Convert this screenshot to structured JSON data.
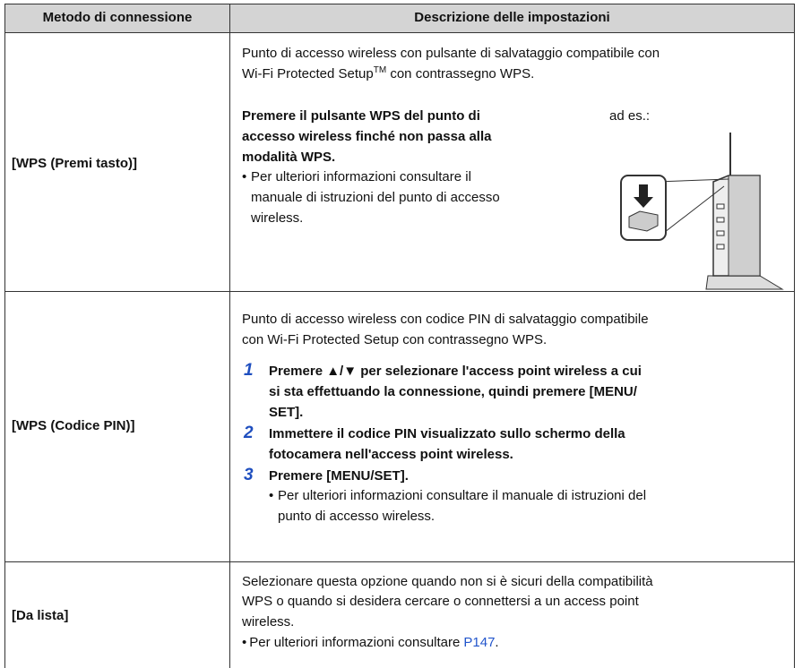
{
  "header": {
    "col1": "Metodo di connessione",
    "col2": "Descrizione delle impostazioni"
  },
  "rows": [
    {
      "method": "[WPS (Premi tasto)]",
      "intro": {
        "line1": "Punto di accesso wireless con pulsante di salvataggio compatibile con",
        "line2_start": "Wi-Fi Protected Setup",
        "sup": "TM",
        "line2_end": "con contrassegno WPS."
      },
      "bold": [
        "Premere il pulsante WPS del punto di",
        "accesso wireless finché non passa alla",
        "modalità WPS."
      ],
      "note": {
        "bullet": "•",
        "lines": [
          "Per ulteriori informazioni consultare il",
          "manuale di istruzioni del punto di accesso",
          "wireless."
        ]
      },
      "caption": "ad es.:"
    },
    {
      "method": "[WPS (Codice PIN)]",
      "intro": [
        "Punto di accesso wireless con codice PIN di salvataggio compatibile",
        "con Wi-Fi Protected Setup con contrassegno WPS."
      ],
      "steps": [
        {
          "number": "1",
          "lines": [
            "Premere ▲/▼ per selezionare l'access point wireless a cui",
            "si sta effettuando la connessione, quindi premere [MENU/",
            "SET]."
          ]
        },
        {
          "number": "2",
          "lines": [
            "Immettere il codice PIN visualizzato sullo schermo della",
            "fotocamera nell'access point wireless."
          ]
        },
        {
          "number": "3",
          "lines": [
            "Premere [MENU/SET]."
          ]
        }
      ],
      "note": {
        "bullet": "•",
        "lines": [
          "Per ulteriori informazioni consultare il manuale di istruzioni del",
          "punto di accesso wireless."
        ]
      }
    },
    {
      "method": "[Da lista]",
      "intro": [
        "Selezionare questa opzione quando non si è sicuri della compatibilità",
        "WPS o quando si desidera cercare o connettersi a un access point",
        "wireless."
      ],
      "note": {
        "bullet": "•",
        "text": "Per ulteriori informazioni consultare",
        "link": "P147",
        "end": "."
      }
    }
  ]
}
